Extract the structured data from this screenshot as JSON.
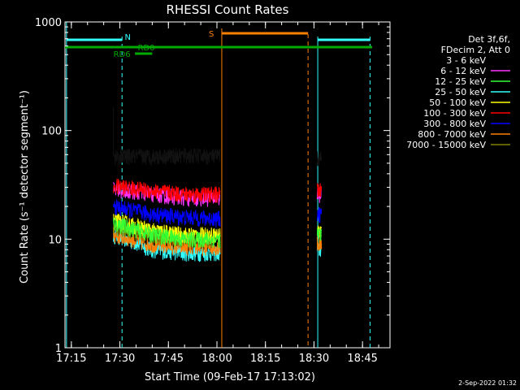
{
  "chart_data": {
    "type": "line",
    "title": "RHESSI Count Rates",
    "xlabel": "Start Time (09-Feb-17 17:13:02)",
    "ylabel": "Count Rate (s⁻¹ detector segment⁻¹)",
    "yscale": "log",
    "ylim": [
      1,
      1000
    ],
    "xlim": [
      "17:13:02",
      "18:53:30"
    ],
    "x_ticks": [
      "17:15",
      "17:30",
      "17:45",
      "18:00",
      "18:15",
      "18:30",
      "18:45"
    ],
    "y_ticks": [
      "1",
      "10",
      "100",
      "1000"
    ],
    "legend_header": [
      "Det 3f,6f,",
      "FDecim 2, Att 0"
    ],
    "legend_position": "right",
    "series": [
      {
        "name": "3 - 6 keV",
        "color": "#000000",
        "x": [
          "17:28",
          "17:40",
          "17:50",
          "18:00",
          "18:31"
        ],
        "values": [
          58,
          58,
          59,
          58,
          56
        ]
      },
      {
        "name": "6 - 12 keV",
        "color": "#ff33ff",
        "x": [
          "17:28",
          "17:40",
          "17:50",
          "18:00",
          "18:31"
        ],
        "values": [
          29,
          26,
          24,
          24,
          26
        ]
      },
      {
        "name": "12 - 25 keV",
        "color": "#33ff33",
        "x": [
          "17:28",
          "17:40",
          "17:50",
          "18:00",
          "18:31"
        ],
        "values": [
          14,
          11,
          10,
          10,
          11
        ]
      },
      {
        "name": "25 - 50 keV",
        "color": "#33ffff",
        "x": [
          "17:28",
          "17:40",
          "17:50",
          "18:00",
          "18:31"
        ],
        "values": [
          11,
          8,
          7.5,
          7.5,
          8
        ]
      },
      {
        "name": "50 - 100 keV",
        "color": "#ffff00",
        "x": [
          "17:28",
          "17:40",
          "17:50",
          "18:00",
          "18:31"
        ],
        "values": [
          15,
          12,
          11,
          11,
          12
        ]
      },
      {
        "name": "100 - 300 keV",
        "color": "#ff0000",
        "x": [
          "17:28",
          "17:40",
          "17:50",
          "18:00",
          "18:31"
        ],
        "values": [
          31,
          28,
          26,
          26,
          28
        ]
      },
      {
        "name": "300 - 800 keV",
        "color": "#0000ff",
        "x": [
          "17:28",
          "17:40",
          "17:50",
          "18:00",
          "18:31"
        ],
        "values": [
          20,
          17,
          16,
          15.5,
          17
        ]
      },
      {
        "name": "800 - 7000 keV",
        "color": "#ff8000",
        "x": [
          "17:28",
          "17:40",
          "17:50",
          "18:00",
          "18:31"
        ],
        "values": [
          11,
          9,
          8.5,
          8.5,
          9
        ]
      },
      {
        "name": "7000 - 15000 keV",
        "color": "#808000",
        "x": [
          "17:28",
          "17:40",
          "17:50",
          "18:00",
          "18:31"
        ],
        "values": [
          13,
          11,
          10,
          10,
          11
        ]
      }
    ],
    "gap": [
      "18:01",
      "18:28"
    ],
    "annotations": {
      "N": {
        "label": "N",
        "color": "#33ffff"
      },
      "S": {
        "label": "S",
        "color": "#ff8000"
      },
      "RD6": {
        "label": "RD6",
        "color": "#00aa00"
      },
      "RD0": {
        "label": "RD0",
        "color": "#00aa00"
      }
    },
    "timestamp": "2-Sep-2022 01:32"
  }
}
